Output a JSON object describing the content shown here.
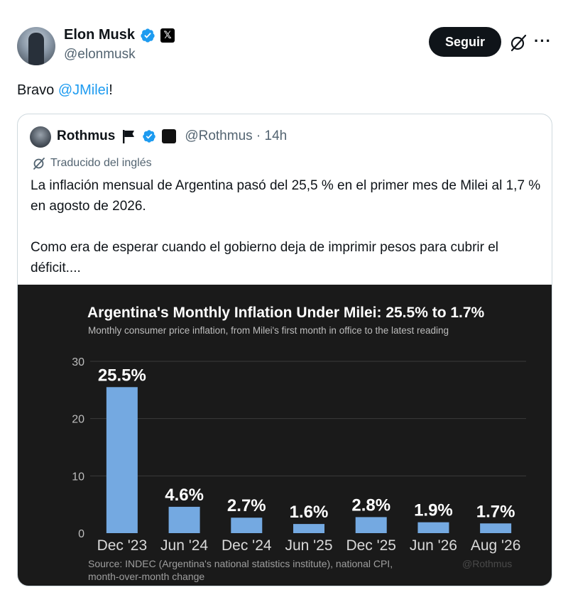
{
  "author": {
    "name": "Elon Musk",
    "handle": "@elonmusk"
  },
  "actions": {
    "follow_label": "Seguir",
    "grok_icon": "grok-icon",
    "more_icon": "more-icon"
  },
  "tweet": {
    "prefix": "Bravo ",
    "mention": "@JMilei",
    "suffix": "!"
  },
  "quote": {
    "name": "Rothmus",
    "handle": "@Rothmus",
    "time": "14h",
    "translated_label": "Traducido del inglés",
    "body": "La inflación mensual de Argentina pasó del 25,5 % en el primer mes de Milei al 1,7 % en agosto de 2026.\n\nComo era de esperar cuando el gobierno deja de imprimir pesos para cubrir el déficit...."
  },
  "chart_data": {
    "type": "bar",
    "title": "Argentina's Monthly Inflation Under Milei: 25.5% to 1.7%",
    "subtitle": "Monthly consumer price inflation, from Milei's first month in office to the latest reading",
    "categories": [
      "Dec '23",
      "Jun '24",
      "Dec '24",
      "Jun '25",
      "Dec '25",
      "Jun '26",
      "Aug '26"
    ],
    "values": [
      25.5,
      4.6,
      2.7,
      1.6,
      2.8,
      1.9,
      1.7
    ],
    "value_labels": [
      "25.5%",
      "4.6%",
      "2.7%",
      "1.6%",
      "2.8%",
      "1.9%",
      "1.7%"
    ],
    "ylim": [
      0,
      30
    ],
    "yticks": [
      0,
      10,
      20,
      30
    ],
    "grid": true,
    "source": "Source: INDEC (Argentina's national statistics institute), national CPI, month-over-month change",
    "watermark": "@Rothmus",
    "colors": {
      "bar": "#74a9e1",
      "background": "#1a1a1a",
      "text": "#ffffff"
    }
  }
}
